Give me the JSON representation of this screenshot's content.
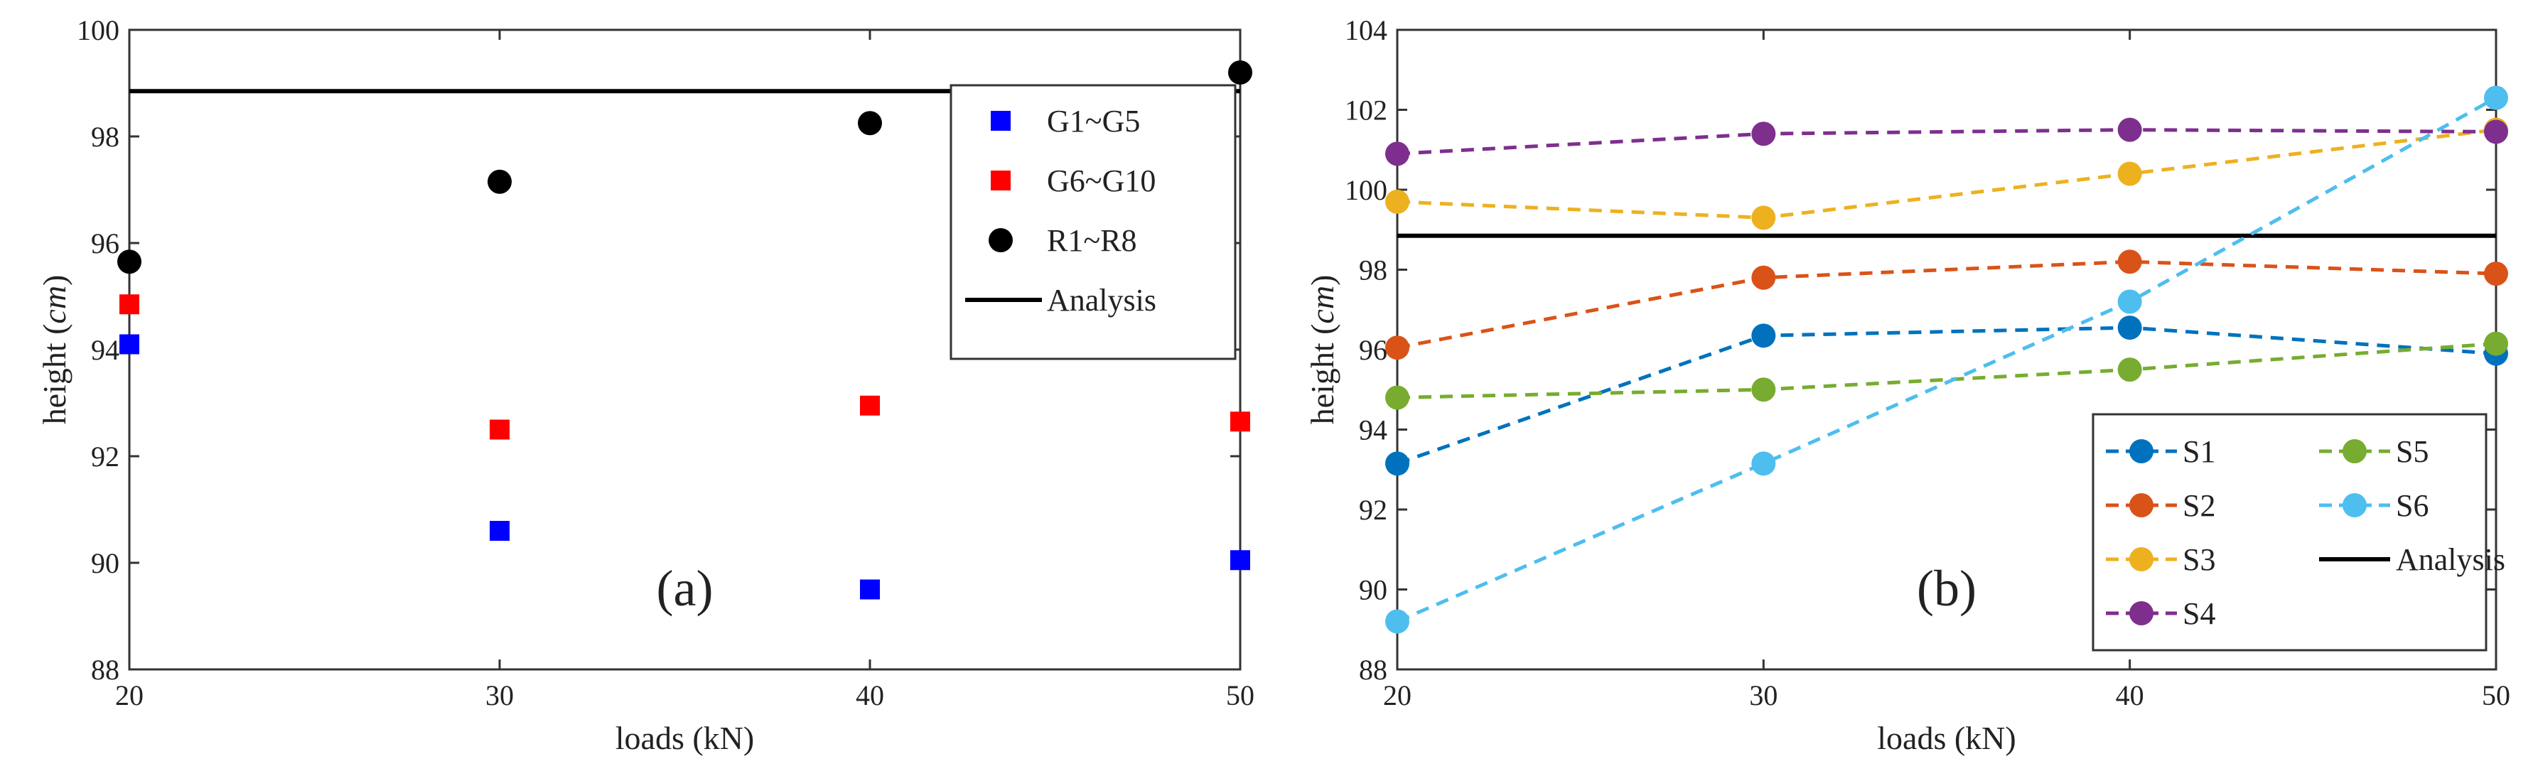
{
  "chart_data": [
    {
      "panel": "(a)",
      "type": "scatter",
      "xlabel": "loads (kN)",
      "ylabel_text": "height (",
      "ylabel_unit": "cm",
      "ylabel_close": ")",
      "xlim": [
        20,
        50
      ],
      "ylim": [
        88,
        100
      ],
      "xticks": [
        20,
        30,
        40,
        50
      ],
      "yticks": [
        88,
        90,
        92,
        94,
        96,
        98,
        100
      ],
      "legend_position": "top-right",
      "series": [
        {
          "name": "G1~G5",
          "marker": "square",
          "color": "#0000ff",
          "x": [
            20,
            30,
            40,
            50
          ],
          "values": [
            94.1,
            90.6,
            89.5,
            90.05
          ]
        },
        {
          "name": "G6~G10",
          "marker": "square",
          "color": "#ff0000",
          "x": [
            20,
            30,
            40,
            50
          ],
          "values": [
            94.85,
            92.5,
            92.95,
            92.65
          ]
        },
        {
          "name": "R1~R8",
          "marker": "circle",
          "color": "#000000",
          "x": [
            20,
            30,
            40,
            50
          ],
          "values": [
            95.65,
            97.15,
            98.25,
            99.2
          ]
        }
      ],
      "reference_line": {
        "name": "Analysis",
        "value": 98.85,
        "color": "#000000"
      }
    },
    {
      "panel": "(b)",
      "type": "line",
      "xlabel": "loads (kN)",
      "ylabel_text": "height (",
      "ylabel_unit": "cm",
      "ylabel_close": ")",
      "xlim": [
        20,
        50
      ],
      "ylim": [
        88,
        104
      ],
      "xticks": [
        20,
        30,
        40,
        50
      ],
      "yticks": [
        88,
        90,
        92,
        94,
        96,
        98,
        100,
        102,
        104
      ],
      "legend_position": "bottom-right",
      "series": [
        {
          "name": "S1",
          "color": "#0072bd",
          "x": [
            20,
            30,
            40,
            50
          ],
          "values": [
            93.15,
            96.35,
            96.55,
            95.9
          ]
        },
        {
          "name": "S2",
          "color": "#d95319",
          "x": [
            20,
            30,
            40,
            50
          ],
          "values": [
            96.05,
            97.8,
            98.2,
            97.9
          ]
        },
        {
          "name": "S3",
          "color": "#edb120",
          "x": [
            20,
            30,
            40,
            50
          ],
          "values": [
            99.7,
            99.3,
            100.4,
            101.5
          ]
        },
        {
          "name": "S4",
          "color": "#7e2f8e",
          "x": [
            20,
            30,
            40,
            50
          ],
          "values": [
            100.9,
            101.4,
            101.5,
            101.45
          ]
        },
        {
          "name": "S5",
          "color": "#77ac30",
          "x": [
            20,
            30,
            40,
            50
          ],
          "values": [
            94.8,
            95.0,
            95.5,
            96.15
          ]
        },
        {
          "name": "S6",
          "color": "#4dbeee",
          "x": [
            20,
            30,
            40,
            50
          ],
          "values": [
            89.2,
            93.15,
            97.2,
            102.3
          ]
        }
      ],
      "reference_line": {
        "name": "Analysis",
        "value": 98.85,
        "color": "#000000"
      }
    }
  ]
}
